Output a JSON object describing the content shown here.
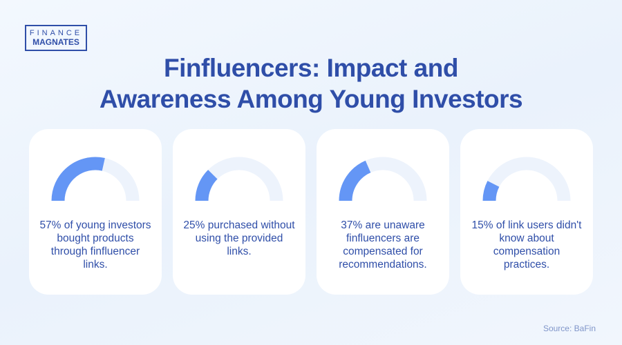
{
  "logo": {
    "line1": "FINANCE",
    "line2": "MAGNATES"
  },
  "title": {
    "line1": "Finfluencers: Impact and",
    "line2": "Awareness Among Young Investors"
  },
  "colors": {
    "title": "#2f4ea8",
    "gauge_fill": "#6496f5",
    "gauge_track": "#edf3fc",
    "card": "#ffffff"
  },
  "chart_data": {
    "type": "gauge",
    "range": [
      0,
      100
    ],
    "items": [
      {
        "value": 57,
        "text": "57% of young investors bought products through finfluencer links."
      },
      {
        "value": 25,
        "text": "25% purchased without using the provided links."
      },
      {
        "value": 37,
        "text": "37% are unaware finfluencers are compensated for recommendations."
      },
      {
        "value": 15,
        "text": "15% of link users didn't know about compensation practices."
      }
    ]
  },
  "source": "Source: BaFin"
}
